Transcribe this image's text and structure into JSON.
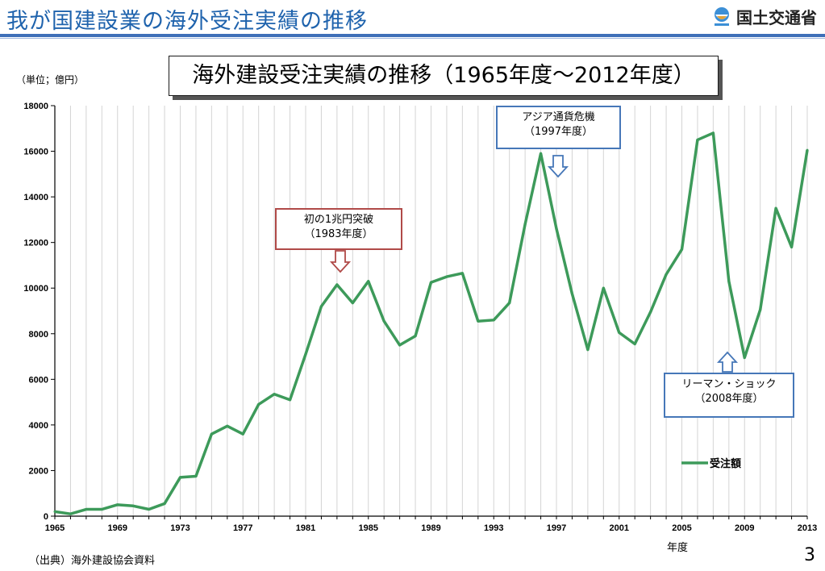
{
  "slide": {
    "title": "我が国建設業の海外受注実績の推移",
    "logo_text": "国土交通省",
    "logo_icon": "mlit-logo-icon",
    "source": "（出典）海外建設協会資料",
    "page_number": "3"
  },
  "callouts": {
    "c1983_line1": "初の1兆円突破",
    "c1983_line2": "（1983年度）",
    "c1997_line1": "アジア通貨危機",
    "c1997_line2": "（1997年度）",
    "c2008_line1": "リーマン・ショック",
    "c2008_line2": "（2008年度）"
  },
  "colors": {
    "line": "#3d9a5a",
    "title": "#1f63ad",
    "red_callout": "#b04a48",
    "blue_callout": "#4677b8"
  },
  "chart_data": {
    "type": "line",
    "title": "海外建設受注実績の推移（1965年度～2012年度）",
    "unit_label": "（単位；億円）",
    "xlabel": "年度",
    "ylabel": "",
    "xlim": [
      1965,
      2013
    ],
    "ylim": [
      0,
      18000
    ],
    "x_ticks": [
      1965,
      1969,
      1973,
      1977,
      1981,
      1985,
      1989,
      1993,
      1997,
      2001,
      2005,
      2009,
      2013
    ],
    "y_ticks": [
      0,
      2000,
      4000,
      6000,
      8000,
      10000,
      12000,
      14000,
      16000,
      18000
    ],
    "grid": "vertical",
    "legend_position": "lower-right",
    "series": [
      {
        "name": "受注額",
        "x": [
          1965,
          1966,
          1967,
          1968,
          1969,
          1970,
          1971,
          1972,
          1973,
          1974,
          1975,
          1976,
          1977,
          1978,
          1979,
          1980,
          1981,
          1982,
          1983,
          1984,
          1985,
          1986,
          1987,
          1988,
          1989,
          1990,
          1991,
          1992,
          1993,
          1994,
          1995,
          1996,
          1997,
          1998,
          1999,
          2000,
          2001,
          2002,
          2003,
          2004,
          2005,
          2006,
          2007,
          2008,
          2009,
          2010,
          2011,
          2012,
          2013
        ],
        "values": [
          200,
          100,
          300,
          300,
          500,
          450,
          300,
          550,
          1700,
          1750,
          3600,
          3950,
          3600,
          4900,
          5350,
          5100,
          7100,
          9200,
          10150,
          9350,
          10300,
          8550,
          7500,
          7900,
          10250,
          10500,
          10650,
          8550,
          8600,
          9350,
          12800,
          15900,
          12600,
          9750,
          7300,
          10000,
          8050,
          7550,
          8950,
          10600,
          11700,
          16500,
          16800,
          10300,
          6950,
          9050,
          13500,
          11800,
          16050
        ]
      }
    ]
  }
}
